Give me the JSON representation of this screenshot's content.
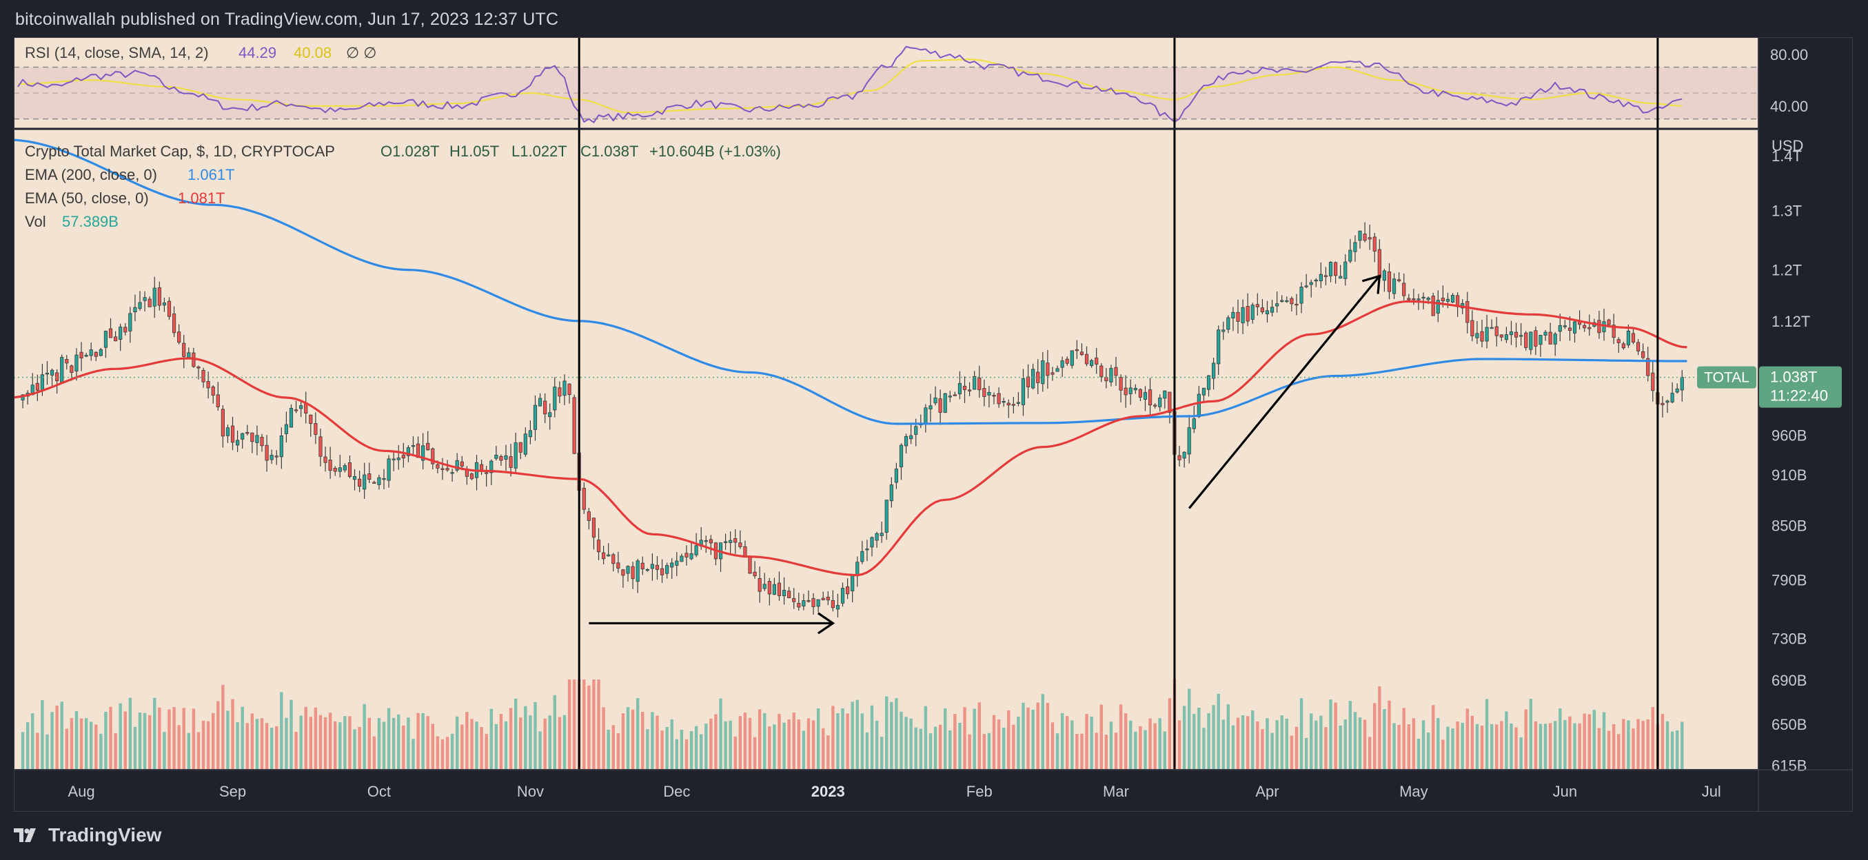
{
  "header": {
    "publisher_line": "bitcoinwallah published on TradingView.com, Jun 17, 2023 12:37 UTC"
  },
  "footer": {
    "brand": "TradingView"
  },
  "colors": {
    "background_chart": "#f3e3d2",
    "rsi_band": "#e9d2cc",
    "rsi_line": "#7e57c2",
    "rsi_sma": "#f1df3a",
    "ema200": "#2f8ae6",
    "ema50": "#e53a3a",
    "candle_up": "#26a69a",
    "candle_down": "#ef5350",
    "vol_up": "#7fbfae",
    "vol_down": "#ec9287",
    "price_tag": "#5fa583"
  },
  "chart_data": {
    "type": "candlestick",
    "title": "Crypto Total Market Cap, $, 1D, CRYPTOCAP",
    "ohlc_label": {
      "o": "O1.028T",
      "h": "H1.05T",
      "l": "L1.022T",
      "c": "C1.038T",
      "change": "+10.604B (+1.03%)"
    },
    "indicators": [
      {
        "name": "EMA (200, close, 0)",
        "value": "1.061T"
      },
      {
        "name": "EMA (50, close, 0)",
        "value": "1.081T"
      },
      {
        "name": "Vol",
        "value": "57.389B"
      }
    ],
    "rsi": {
      "label": "RSI (14, close, SMA, 14, 2)",
      "value": "44.29",
      "sma_value": "40.08",
      "extra": "∅ ∅",
      "ticks": [
        "80.00",
        "40.00"
      ],
      "ylim": [
        25,
        90
      ],
      "band": [
        30,
        70
      ],
      "mid": 50
    },
    "price_axis": {
      "unit": "USD",
      "ticks": [
        "1.4T",
        "1.3T",
        "1.2T",
        "1.12T",
        "960B",
        "910B",
        "850B",
        "790B",
        "730B",
        "690B",
        "650B",
        "615B"
      ],
      "tick_values": [
        1400,
        1300,
        1200,
        1120,
        960,
        910,
        850,
        790,
        730,
        690,
        650,
        615
      ],
      "ylim": [
        612,
        1450
      ],
      "scale": "log"
    },
    "current_price": {
      "symbol": "TOTAL",
      "value": "1.038T",
      "countdown": "11:22:40",
      "price": 1038
    },
    "x_axis": {
      "labels": [
        "Aug",
        "Sep",
        "Oct",
        "Nov",
        "Dec",
        "2023",
        "Feb",
        "Mar",
        "Apr",
        "May",
        "Jun",
        "Jul"
      ],
      "label_days": [
        13,
        44,
        74,
        105,
        135,
        166,
        197,
        225,
        256,
        286,
        317,
        347
      ],
      "start_date": "2022-07-18",
      "end_date": "2023-07-25"
    },
    "vertical_lines_days": [
      115,
      237,
      336
    ],
    "anchor_closes": [
      [
        0,
        1010
      ],
      [
        12,
        1060
      ],
      [
        20,
        1100
      ],
      [
        28,
        1160
      ],
      [
        34,
        1080
      ],
      [
        44,
        960
      ],
      [
        52,
        940
      ],
      [
        58,
        1010
      ],
      [
        64,
        925
      ],
      [
        72,
        900
      ],
      [
        80,
        940
      ],
      [
        90,
        915
      ],
      [
        100,
        930
      ],
      [
        108,
        1000
      ],
      [
        112,
        1030
      ],
      [
        116,
        860
      ],
      [
        120,
        810
      ],
      [
        126,
        800
      ],
      [
        132,
        795
      ],
      [
        140,
        825
      ],
      [
        148,
        825
      ],
      [
        153,
        775
      ],
      [
        160,
        770
      ],
      [
        168,
        770
      ],
      [
        175,
        830
      ],
      [
        182,
        950
      ],
      [
        188,
        1000
      ],
      [
        196,
        1030
      ],
      [
        203,
        1010
      ],
      [
        211,
        1050
      ],
      [
        217,
        1080
      ],
      [
        224,
        1040
      ],
      [
        230,
        1010
      ],
      [
        235,
        1010
      ],
      [
        238,
        920
      ],
      [
        242,
        1000
      ],
      [
        248,
        1130
      ],
      [
        256,
        1130
      ],
      [
        264,
        1160
      ],
      [
        270,
        1200
      ],
      [
        276,
        1250
      ],
      [
        281,
        1180
      ],
      [
        286,
        1140
      ],
      [
        294,
        1150
      ],
      [
        300,
        1100
      ],
      [
        306,
        1090
      ],
      [
        312,
        1090
      ],
      [
        318,
        1120
      ],
      [
        324,
        1110
      ],
      [
        330,
        1095
      ],
      [
        336,
        1010
      ],
      [
        341,
        1038
      ]
    ],
    "ema200_anchors": [
      [
        -2,
        1430
      ],
      [
        40,
        1310
      ],
      [
        80,
        1200
      ],
      [
        115,
        1120
      ],
      [
        150,
        1045
      ],
      [
        180,
        975
      ],
      [
        210,
        976
      ],
      [
        240,
        985
      ],
      [
        270,
        1040
      ],
      [
        300,
        1064
      ],
      [
        342,
        1061
      ]
    ],
    "ema50_anchors": [
      [
        -2,
        1010
      ],
      [
        20,
        1050
      ],
      [
        35,
        1065
      ],
      [
        55,
        1010
      ],
      [
        75,
        940
      ],
      [
        95,
        915
      ],
      [
        115,
        905
      ],
      [
        130,
        840
      ],
      [
        150,
        815
      ],
      [
        172,
        795
      ],
      [
        190,
        880
      ],
      [
        210,
        945
      ],
      [
        230,
        985
      ],
      [
        245,
        1005
      ],
      [
        265,
        1100
      ],
      [
        285,
        1150
      ],
      [
        310,
        1130
      ],
      [
        330,
        1110
      ],
      [
        342,
        1081
      ]
    ],
    "rsi_anchors": [
      [
        0,
        58
      ],
      [
        8,
        55
      ],
      [
        15,
        63
      ],
      [
        25,
        65
      ],
      [
        33,
        52
      ],
      [
        45,
        38
      ],
      [
        55,
        42
      ],
      [
        65,
        36
      ],
      [
        78,
        43
      ],
      [
        90,
        40
      ],
      [
        100,
        48
      ],
      [
        110,
        70
      ],
      [
        116,
        30
      ],
      [
        125,
        32
      ],
      [
        140,
        42
      ],
      [
        150,
        37
      ],
      [
        162,
        40
      ],
      [
        170,
        46
      ],
      [
        178,
        70
      ],
      [
        182,
        85
      ],
      [
        190,
        80
      ],
      [
        200,
        70
      ],
      [
        210,
        62
      ],
      [
        218,
        56
      ],
      [
        228,
        48
      ],
      [
        237,
        30
      ],
      [
        243,
        55
      ],
      [
        250,
        68
      ],
      [
        262,
        66
      ],
      [
        270,
        73
      ],
      [
        280,
        70
      ],
      [
        287,
        52
      ],
      [
        298,
        45
      ],
      [
        306,
        42
      ],
      [
        316,
        56
      ],
      [
        325,
        46
      ],
      [
        335,
        36
      ],
      [
        341,
        44
      ]
    ],
    "rsi_sma_anchors": [
      [
        0,
        57
      ],
      [
        15,
        60
      ],
      [
        30,
        55
      ],
      [
        45,
        45
      ],
      [
        60,
        40
      ],
      [
        75,
        40
      ],
      [
        90,
        42
      ],
      [
        105,
        50
      ],
      [
        115,
        45
      ],
      [
        125,
        35
      ],
      [
        145,
        38
      ],
      [
        160,
        40
      ],
      [
        175,
        52
      ],
      [
        185,
        75
      ],
      [
        195,
        76
      ],
      [
        210,
        65
      ],
      [
        225,
        52
      ],
      [
        237,
        45
      ],
      [
        245,
        55
      ],
      [
        258,
        64
      ],
      [
        270,
        70
      ],
      [
        282,
        60
      ],
      [
        295,
        50
      ],
      [
        310,
        45
      ],
      [
        322,
        50
      ],
      [
        335,
        42
      ],
      [
        341,
        40
      ]
    ],
    "annotations": [
      {
        "type": "arrow",
        "from_day": 117,
        "to_day": 167,
        "price": 745
      },
      {
        "type": "arrow",
        "from_day": 240,
        "to_day": 279,
        "from_price": 870,
        "to_price": 1190
      }
    ]
  }
}
